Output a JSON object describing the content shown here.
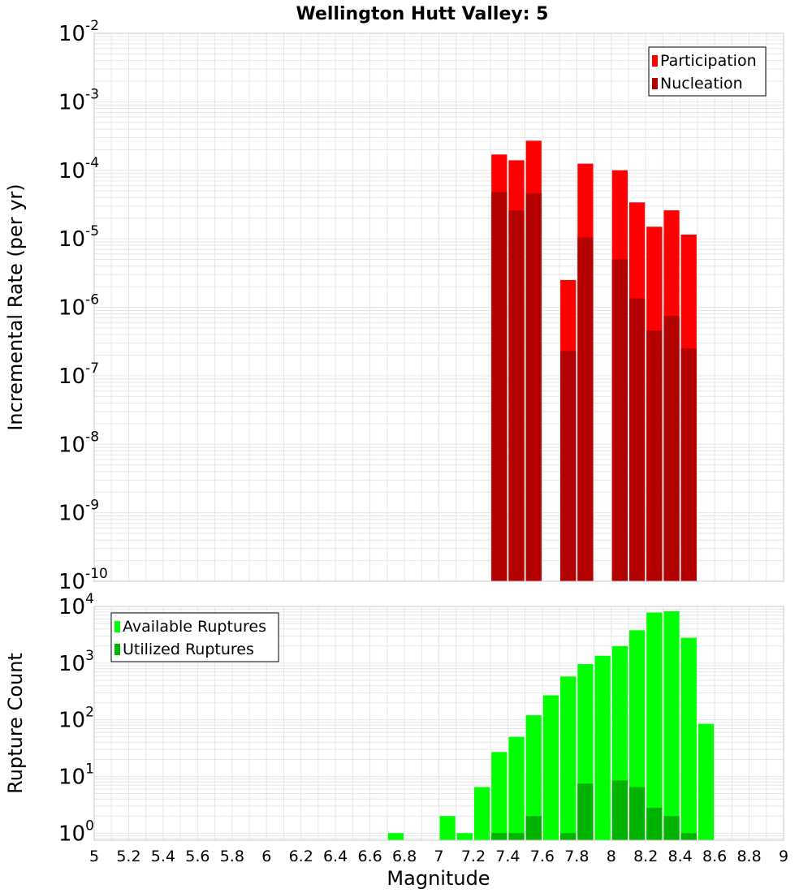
{
  "title": "Wellington Hutt Valley: 5",
  "colors": {
    "participation": "#ff0000",
    "nucleation": "#b30000",
    "available": "#00ff00",
    "utilized": "#00b300",
    "grid": "#e6e6e6",
    "frame": "#c8c8c8",
    "legend_border": "#000000"
  },
  "chart_data": [
    {
      "type": "bar",
      "ylabel": "Incremental Rate (per yr)",
      "yscale": "log",
      "ylim": [
        1e-10,
        0.01
      ],
      "xlim": [
        5,
        9
      ],
      "bin_width": 0.1,
      "grid": true,
      "legend_position": "top-right",
      "y_ticks": [
        {
          "base": "10",
          "exp": "-10",
          "value": 1e-10
        },
        {
          "base": "10",
          "exp": "-9",
          "value": 1e-09
        },
        {
          "base": "10",
          "exp": "-8",
          "value": 1e-08
        },
        {
          "base": "10",
          "exp": "-7",
          "value": 1e-07
        },
        {
          "base": "10",
          "exp": "-6",
          "value": 1e-06
        },
        {
          "base": "10",
          "exp": "-5",
          "value": 1e-05
        },
        {
          "base": "10",
          "exp": "-4",
          "value": 0.0001
        },
        {
          "base": "10",
          "exp": "-3",
          "value": 0.001
        },
        {
          "base": "10",
          "exp": "-2",
          "value": 0.01
        }
      ],
      "series": [
        {
          "name": "Participation",
          "x": [
            7.35,
            7.45,
            7.55,
            7.75,
            7.85,
            8.05,
            8.15,
            8.25,
            8.35,
            8.45
          ],
          "values": [
            0.00017,
            0.00014,
            0.00027,
            2.5e-06,
            0.000125,
            0.0001,
            3.4e-05,
            1.5e-05,
            2.6e-05,
            1.15e-05
          ]
        },
        {
          "name": "Nucleation",
          "x": [
            7.35,
            7.45,
            7.55,
            7.75,
            7.85,
            8.05,
            8.15,
            8.25,
            8.35,
            8.45
          ],
          "values": [
            4.8e-05,
            2.6e-05,
            4.6e-05,
            2.3e-07,
            1.05e-05,
            5e-06,
            1.35e-06,
            4.6e-07,
            7.5e-07,
            2.5e-07
          ]
        }
      ]
    },
    {
      "type": "bar",
      "xlabel": "Magnitude",
      "ylabel": "Rupture Count",
      "yscale": "log",
      "ylim": [
        0.75,
        10000
      ],
      "xlim": [
        5,
        9
      ],
      "bin_width": 0.1,
      "grid": true,
      "legend_position": "top-left",
      "x_ticks": [
        "5",
        "5.2",
        "5.4",
        "5.6",
        "5.8",
        "6",
        "6.2",
        "6.4",
        "6.6",
        "6.8",
        "7",
        "7.2",
        "7.4",
        "7.6",
        "7.8",
        "8",
        "8.2",
        "8.4",
        "8.6",
        "8.8",
        "9"
      ],
      "y_ticks": [
        {
          "base": "10",
          "exp": "0",
          "value": 1
        },
        {
          "base": "10",
          "exp": "1",
          "value": 10
        },
        {
          "base": "10",
          "exp": "2",
          "value": 100
        },
        {
          "base": "10",
          "exp": "3",
          "value": 1000
        },
        {
          "base": "10",
          "exp": "4",
          "value": 10000
        }
      ],
      "series": [
        {
          "name": "Available Ruptures",
          "x": [
            6.75,
            7.05,
            7.15,
            7.25,
            7.35,
            7.45,
            7.55,
            7.65,
            7.75,
            7.85,
            7.95,
            8.05,
            8.15,
            8.25,
            8.35,
            8.45,
            8.55
          ],
          "values": [
            1,
            2,
            1,
            6.5,
            27,
            50,
            120,
            270,
            580,
            960,
            1350,
            2000,
            3800,
            7800,
            8200,
            2800,
            85
          ]
        },
        {
          "name": "Utilized Ruptures",
          "x": [
            7.35,
            7.45,
            7.55,
            7.75,
            7.85,
            8.05,
            8.15,
            8.25,
            8.35,
            8.45
          ],
          "values": [
            1,
            1,
            2,
            1,
            7.5,
            8.5,
            6.5,
            2.8,
            2,
            1
          ]
        }
      ]
    }
  ]
}
